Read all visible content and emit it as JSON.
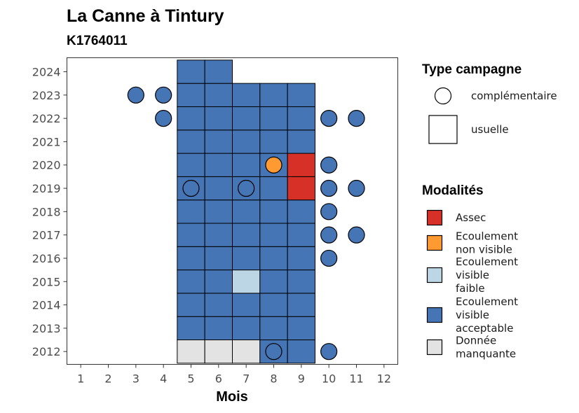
{
  "chart_data": {
    "type": "heatmap",
    "title": "La Canne à Tintury",
    "subtitle": "K1764011",
    "xlabel": "Mois",
    "ylabel": "",
    "x_ticks": [
      "1",
      "2",
      "3",
      "4",
      "5",
      "6",
      "7",
      "8",
      "9",
      "10",
      "11",
      "12"
    ],
    "y_ticks": [
      "2012",
      "2013",
      "2014",
      "2015",
      "2016",
      "2017",
      "2018",
      "2019",
      "2020",
      "2021",
      "2022",
      "2023",
      "2024"
    ],
    "x_range": [
      0.5,
      12.5
    ],
    "y_range": [
      2011.45,
      2024.6
    ],
    "grid": false,
    "legend_placement": "right",
    "legend_shape": {
      "title": "Type campagne",
      "entries": [
        {
          "shape": "circle",
          "label": "complémentaire"
        },
        {
          "shape": "square",
          "label": "usuelle"
        }
      ]
    },
    "legend_modalites": {
      "title": "Modalités",
      "entries": [
        {
          "key": "assec",
          "lines": [
            "Assec"
          ],
          "color": "#D73027"
        },
        {
          "key": "nonvis",
          "lines": [
            "Ecoulement",
            "non visible"
          ],
          "color": "#FE9A31"
        },
        {
          "key": "faible",
          "lines": [
            "Ecoulement",
            "visible",
            "faible"
          ],
          "color": "#BCD6E6"
        },
        {
          "key": "accept",
          "lines": [
            "Ecoulement",
            "visible",
            "acceptable"
          ],
          "color": "#4575B4"
        },
        {
          "key": "manq",
          "lines": [
            "Donnée",
            "manquante"
          ],
          "color": "#E3E3E3"
        }
      ]
    },
    "usuelle": [
      {
        "year": 2012,
        "month": 5,
        "modalite": "manq"
      },
      {
        "year": 2012,
        "month": 6,
        "modalite": "manq"
      },
      {
        "year": 2012,
        "month": 7,
        "modalite": "manq"
      },
      {
        "year": 2012,
        "month": 8,
        "modalite": "accept"
      },
      {
        "year": 2012,
        "month": 9,
        "modalite": "accept"
      },
      {
        "year": 2013,
        "month": 5,
        "modalite": "accept"
      },
      {
        "year": 2013,
        "month": 6,
        "modalite": "accept"
      },
      {
        "year": 2013,
        "month": 7,
        "modalite": "accept"
      },
      {
        "year": 2013,
        "month": 8,
        "modalite": "accept"
      },
      {
        "year": 2013,
        "month": 9,
        "modalite": "accept"
      },
      {
        "year": 2014,
        "month": 5,
        "modalite": "accept"
      },
      {
        "year": 2014,
        "month": 6,
        "modalite": "accept"
      },
      {
        "year": 2014,
        "month": 7,
        "modalite": "accept"
      },
      {
        "year": 2014,
        "month": 8,
        "modalite": "accept"
      },
      {
        "year": 2014,
        "month": 9,
        "modalite": "accept"
      },
      {
        "year": 2015,
        "month": 5,
        "modalite": "accept"
      },
      {
        "year": 2015,
        "month": 6,
        "modalite": "accept"
      },
      {
        "year": 2015,
        "month": 7,
        "modalite": "faible"
      },
      {
        "year": 2015,
        "month": 8,
        "modalite": "accept"
      },
      {
        "year": 2015,
        "month": 9,
        "modalite": "accept"
      },
      {
        "year": 2016,
        "month": 5,
        "modalite": "accept"
      },
      {
        "year": 2016,
        "month": 6,
        "modalite": "accept"
      },
      {
        "year": 2016,
        "month": 7,
        "modalite": "accept"
      },
      {
        "year": 2016,
        "month": 8,
        "modalite": "accept"
      },
      {
        "year": 2016,
        "month": 9,
        "modalite": "accept"
      },
      {
        "year": 2017,
        "month": 5,
        "modalite": "accept"
      },
      {
        "year": 2017,
        "month": 6,
        "modalite": "accept"
      },
      {
        "year": 2017,
        "month": 7,
        "modalite": "accept"
      },
      {
        "year": 2017,
        "month": 8,
        "modalite": "accept"
      },
      {
        "year": 2017,
        "month": 9,
        "modalite": "accept"
      },
      {
        "year": 2018,
        "month": 5,
        "modalite": "accept"
      },
      {
        "year": 2018,
        "month": 6,
        "modalite": "accept"
      },
      {
        "year": 2018,
        "month": 7,
        "modalite": "accept"
      },
      {
        "year": 2018,
        "month": 8,
        "modalite": "accept"
      },
      {
        "year": 2018,
        "month": 9,
        "modalite": "accept"
      },
      {
        "year": 2019,
        "month": 5,
        "modalite": "accept"
      },
      {
        "year": 2019,
        "month": 6,
        "modalite": "accept"
      },
      {
        "year": 2019,
        "month": 7,
        "modalite": "accept"
      },
      {
        "year": 2019,
        "month": 8,
        "modalite": "accept"
      },
      {
        "year": 2019,
        "month": 9,
        "modalite": "assec"
      },
      {
        "year": 2020,
        "month": 5,
        "modalite": "accept"
      },
      {
        "year": 2020,
        "month": 6,
        "modalite": "accept"
      },
      {
        "year": 2020,
        "month": 7,
        "modalite": "accept"
      },
      {
        "year": 2020,
        "month": 8,
        "modalite": "accept"
      },
      {
        "year": 2020,
        "month": 9,
        "modalite": "assec"
      },
      {
        "year": 2021,
        "month": 5,
        "modalite": "accept"
      },
      {
        "year": 2021,
        "month": 6,
        "modalite": "accept"
      },
      {
        "year": 2021,
        "month": 7,
        "modalite": "accept"
      },
      {
        "year": 2021,
        "month": 8,
        "modalite": "accept"
      },
      {
        "year": 2021,
        "month": 9,
        "modalite": "accept"
      },
      {
        "year": 2022,
        "month": 5,
        "modalite": "accept"
      },
      {
        "year": 2022,
        "month": 6,
        "modalite": "accept"
      },
      {
        "year": 2022,
        "month": 7,
        "modalite": "accept"
      },
      {
        "year": 2022,
        "month": 8,
        "modalite": "accept"
      },
      {
        "year": 2022,
        "month": 9,
        "modalite": "accept"
      },
      {
        "year": 2023,
        "month": 5,
        "modalite": "accept"
      },
      {
        "year": 2023,
        "month": 6,
        "modalite": "accept"
      },
      {
        "year": 2023,
        "month": 7,
        "modalite": "accept"
      },
      {
        "year": 2023,
        "month": 8,
        "modalite": "accept"
      },
      {
        "year": 2023,
        "month": 9,
        "modalite": "accept"
      },
      {
        "year": 2024,
        "month": 5,
        "modalite": "accept"
      },
      {
        "year": 2024,
        "month": 6,
        "modalite": "accept"
      }
    ],
    "complementaire": [
      {
        "year": 2023,
        "month": 3,
        "modalite": "accept"
      },
      {
        "year": 2023,
        "month": 4,
        "modalite": "accept"
      },
      {
        "year": 2022,
        "month": 4,
        "modalite": "accept"
      },
      {
        "year": 2022,
        "month": 10,
        "modalite": "accept"
      },
      {
        "year": 2022,
        "month": 11,
        "modalite": "accept"
      },
      {
        "year": 2020,
        "month": 8,
        "modalite": "nonvis"
      },
      {
        "year": 2020,
        "month": 10,
        "modalite": "accept"
      },
      {
        "year": 2019,
        "month": 5,
        "modalite": "accept"
      },
      {
        "year": 2019,
        "month": 7,
        "modalite": "accept"
      },
      {
        "year": 2019,
        "month": 10,
        "modalite": "accept"
      },
      {
        "year": 2019,
        "month": 11,
        "modalite": "accept"
      },
      {
        "year": 2018,
        "month": 10,
        "modalite": "accept"
      },
      {
        "year": 2017,
        "month": 10,
        "modalite": "accept"
      },
      {
        "year": 2017,
        "month": 11,
        "modalite": "accept"
      },
      {
        "year": 2016,
        "month": 10,
        "modalite": "accept"
      },
      {
        "year": 2012,
        "month": 8,
        "modalite": "accept"
      },
      {
        "year": 2012,
        "month": 10,
        "modalite": "accept"
      }
    ]
  }
}
